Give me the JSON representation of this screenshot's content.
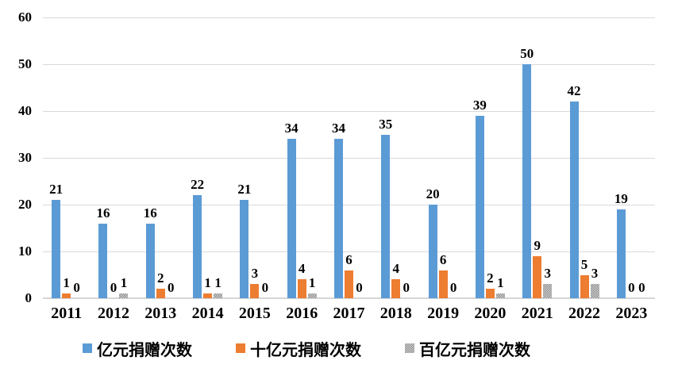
{
  "chart_data": {
    "type": "bar",
    "title": "",
    "xlabel": "",
    "ylabel": "",
    "categories": [
      "2011",
      "2012",
      "2013",
      "2014",
      "2015",
      "2016",
      "2017",
      "2018",
      "2019",
      "2020",
      "2021",
      "2022",
      "2023"
    ],
    "series": [
      {
        "name": "亿元捐赠次数",
        "color": "#5B9BD5",
        "pattern": "solid",
        "values": [
          21,
          16,
          16,
          22,
          21,
          34,
          34,
          35,
          20,
          39,
          50,
          42,
          19
        ]
      },
      {
        "name": "十亿元捐赠次数",
        "color": "#ED7D31",
        "pattern": "solid",
        "values": [
          1,
          0,
          2,
          1,
          3,
          4,
          6,
          4,
          6,
          2,
          9,
          5,
          0
        ]
      },
      {
        "name": "百亿元捐赠次数",
        "color": "#A5A5A5",
        "pattern": "dotted",
        "values": [
          0,
          1,
          0,
          1,
          0,
          1,
          0,
          0,
          0,
          1,
          3,
          3,
          0
        ]
      }
    ],
    "ylim": [
      0,
      60
    ],
    "yticks": [
      0,
      10,
      20,
      30,
      40,
      50,
      60
    ],
    "grid": true,
    "gridline_color": "#D9D9D9",
    "data_labels": true,
    "legend_position": "bottom"
  }
}
